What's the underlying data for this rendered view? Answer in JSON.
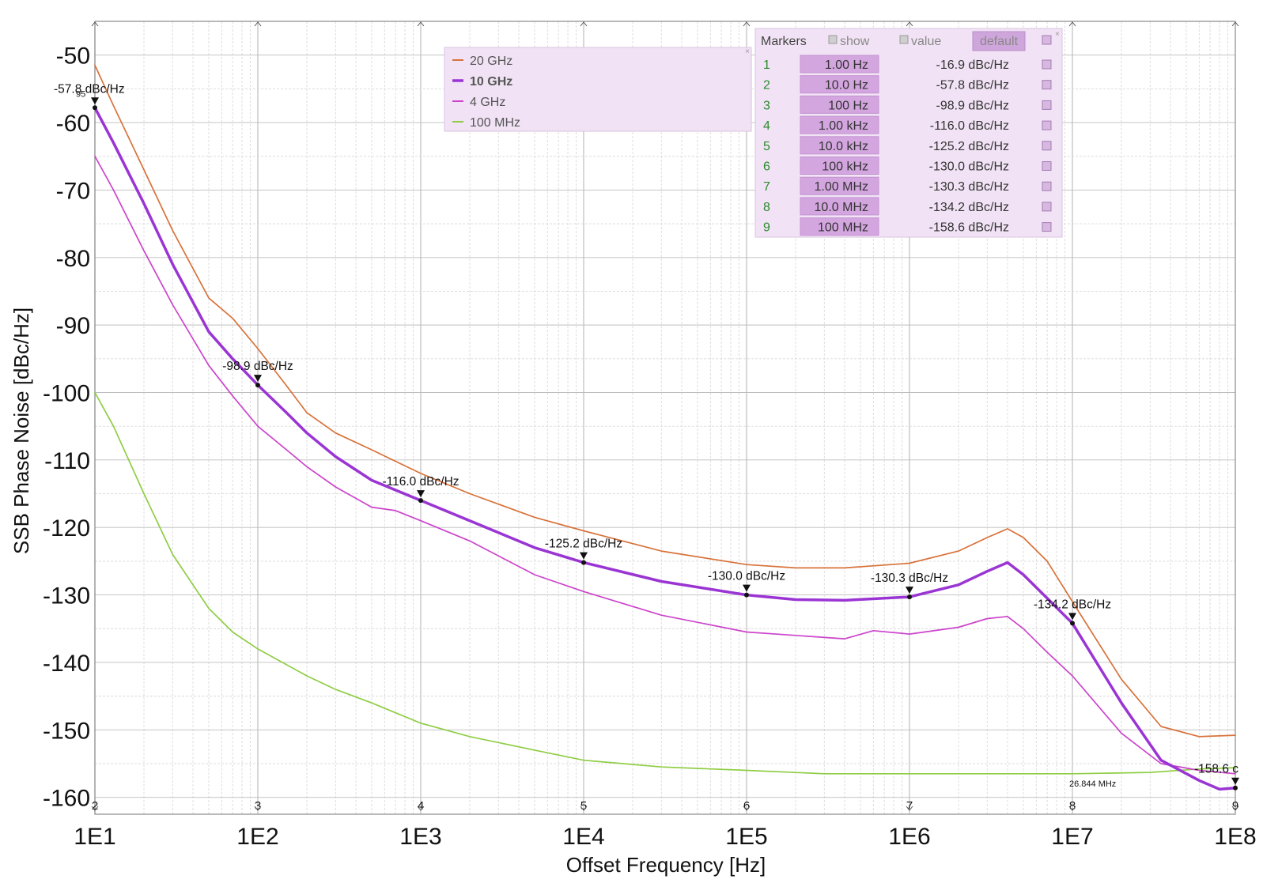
{
  "chart_data": {
    "type": "line",
    "xlabel": "Offset Frequency [Hz]",
    "ylabel": "SSB Phase Noise [dBc/Hz]",
    "x_scale": "log",
    "xlim": [
      10,
      100000000
    ],
    "ylim": [
      -162.5,
      -45
    ],
    "grid": true,
    "x_ticks": [
      "1E1",
      "1E2",
      "1E3",
      "1E4",
      "1E5",
      "1E6",
      "1E7",
      "1E8"
    ],
    "x_subticks": [
      "2",
      "3",
      "4",
      "5",
      "6",
      "7",
      "8",
      "9"
    ],
    "x_annotation": "26.844 MHz",
    "y_ticks": [
      "-50",
      "-60",
      "-70",
      "-80",
      "-90",
      "-100",
      "-110",
      "-120",
      "-130",
      "-140",
      "-150",
      "-160"
    ],
    "legend": {
      "position": "top-center",
      "entries": [
        "20 GHz",
        "10 GHz",
        "4 GHz",
        "100 MHz"
      ]
    },
    "series": [
      {
        "name": "20 GHz",
        "color": "#d8723a",
        "points": [
          [
            10,
            -51.5
          ],
          [
            13,
            -57.5
          ],
          [
            20,
            -67
          ],
          [
            30,
            -76
          ],
          [
            50,
            -86
          ],
          [
            70,
            -89
          ],
          [
            100,
            -93.5
          ],
          [
            150,
            -99
          ],
          [
            200,
            -103
          ],
          [
            300,
            -106
          ],
          [
            500,
            -108.5
          ],
          [
            1000,
            -112
          ],
          [
            2000,
            -115
          ],
          [
            5000,
            -118.5
          ],
          [
            10000,
            -120.5
          ],
          [
            30000,
            -123.5
          ],
          [
            100000,
            -125.5
          ],
          [
            200000,
            -126
          ],
          [
            400000,
            -126
          ],
          [
            1000000,
            -125.3
          ],
          [
            2000000,
            -123.5
          ],
          [
            3000000,
            -121.5
          ],
          [
            4000000,
            -120.2
          ],
          [
            5000000,
            -121.5
          ],
          [
            7000000,
            -125
          ],
          [
            10000000,
            -131
          ],
          [
            20000000,
            -142.5
          ],
          [
            35000000,
            -149.5
          ],
          [
            60000000,
            -151
          ],
          [
            100000000,
            -150.8
          ]
        ]
      },
      {
        "name": "10 GHz",
        "color": "#9a35d4",
        "points": [
          [
            10,
            -57.8
          ],
          [
            13,
            -63
          ],
          [
            20,
            -72
          ],
          [
            30,
            -81
          ],
          [
            50,
            -91
          ],
          [
            70,
            -95
          ],
          [
            100,
            -98.9
          ],
          [
            150,
            -103
          ],
          [
            200,
            -106
          ],
          [
            300,
            -109.5
          ],
          [
            500,
            -113
          ],
          [
            1000,
            -116
          ],
          [
            2000,
            -119
          ],
          [
            5000,
            -123
          ],
          [
            10000,
            -125.2
          ],
          [
            30000,
            -128
          ],
          [
            100000,
            -130
          ],
          [
            200000,
            -130.7
          ],
          [
            400000,
            -130.8
          ],
          [
            1000000,
            -130.3
          ],
          [
            2000000,
            -128.5
          ],
          [
            3000000,
            -126.5
          ],
          [
            4000000,
            -125.2
          ],
          [
            5000000,
            -127
          ],
          [
            7000000,
            -130.5
          ],
          [
            10000000,
            -134.2
          ],
          [
            20000000,
            -146
          ],
          [
            35000000,
            -154.5
          ],
          [
            60000000,
            -157.5
          ],
          [
            80000000,
            -158.8
          ],
          [
            100000000,
            -158.6
          ]
        ]
      },
      {
        "name": "4 GHz",
        "color": "#cc44cc",
        "points": [
          [
            10,
            -65
          ],
          [
            13,
            -70
          ],
          [
            20,
            -79
          ],
          [
            30,
            -87
          ],
          [
            50,
            -96
          ],
          [
            70,
            -100.5
          ],
          [
            100,
            -105
          ],
          [
            150,
            -108.5
          ],
          [
            200,
            -111
          ],
          [
            300,
            -114
          ],
          [
            500,
            -117
          ],
          [
            700,
            -117.5
          ],
          [
            1000,
            -119
          ],
          [
            2000,
            -122
          ],
          [
            5000,
            -127
          ],
          [
            10000,
            -129.5
          ],
          [
            30000,
            -133
          ],
          [
            100000,
            -135.5
          ],
          [
            200000,
            -136
          ],
          [
            400000,
            -136.5
          ],
          [
            600000,
            -135.3
          ],
          [
            1000000,
            -135.8
          ],
          [
            2000000,
            -134.8
          ],
          [
            3000000,
            -133.5
          ],
          [
            4000000,
            -133.2
          ],
          [
            5000000,
            -135
          ],
          [
            7000000,
            -138.5
          ],
          [
            10000000,
            -142
          ],
          [
            20000000,
            -150.5
          ],
          [
            35000000,
            -155
          ],
          [
            60000000,
            -156
          ],
          [
            100000000,
            -156.5
          ]
        ]
      },
      {
        "name": "100 MHz",
        "color": "#8fcd45",
        "points": [
          [
            10,
            -100
          ],
          [
            13,
            -105
          ],
          [
            20,
            -115
          ],
          [
            30,
            -124
          ],
          [
            50,
            -132
          ],
          [
            70,
            -135.5
          ],
          [
            100,
            -138
          ],
          [
            200,
            -142
          ],
          [
            300,
            -144
          ],
          [
            500,
            -146
          ],
          [
            1000,
            -149
          ],
          [
            2000,
            -151
          ],
          [
            5000,
            -153
          ],
          [
            10000,
            -154.5
          ],
          [
            30000,
            -155.5
          ],
          [
            100000,
            -156
          ],
          [
            300000,
            -156.5
          ],
          [
            1000000,
            -156.5
          ],
          [
            10000000,
            -156.5
          ],
          [
            30000000,
            -156.3
          ],
          [
            60000000,
            -155.8
          ],
          [
            100000000,
            -155.6
          ]
        ]
      }
    ],
    "marker_annotations": [
      {
        "x": 10,
        "y": -57.8,
        "label": "-57.8 dBc/Hz"
      },
      {
        "x": 100,
        "y": -98.9,
        "label": "-98.9 dBc/Hz"
      },
      {
        "x": 1000,
        "y": -116.0,
        "label": "-116.0 dBc/Hz"
      },
      {
        "x": 10000,
        "y": -125.2,
        "label": "-125.2 dBc/Hz"
      },
      {
        "x": 100000,
        "y": -130.0,
        "label": "-130.0 dBc/Hz"
      },
      {
        "x": 1000000,
        "y": -130.3,
        "label": "-130.3 dBc/Hz"
      },
      {
        "x": 10000000,
        "y": -134.2,
        "label": "-134.2 dBc/Hz"
      },
      {
        "x": 100000000,
        "y": -158.6,
        "label": "-158.6 c"
      }
    ],
    "marker_sub_label": "95",
    "markers_table": {
      "title": "Markers",
      "show_label": "show",
      "value_label": "value",
      "default_label": "default",
      "rows": [
        {
          "index": "1",
          "freq": "1.00 Hz",
          "value": "-16.9 dBc/Hz"
        },
        {
          "index": "2",
          "freq": "10.0 Hz",
          "value": "-57.8 dBc/Hz"
        },
        {
          "index": "3",
          "freq": "100 Hz",
          "value": "-98.9 dBc/Hz"
        },
        {
          "index": "4",
          "freq": "1.00 kHz",
          "value": "-116.0 dBc/Hz"
        },
        {
          "index": "5",
          "freq": "10.0 kHz",
          "value": "-125.2 dBc/Hz"
        },
        {
          "index": "6",
          "freq": "100 kHz",
          "value": "-130.0 dBc/Hz"
        },
        {
          "index": "7",
          "freq": "1.00 MHz",
          "value": "-130.3 dBc/Hz"
        },
        {
          "index": "8",
          "freq": "10.0 MHz",
          "value": "-134.2 dBc/Hz"
        },
        {
          "index": "9",
          "freq": "100 MHz",
          "value": "-158.6 dBc/Hz"
        }
      ]
    }
  }
}
